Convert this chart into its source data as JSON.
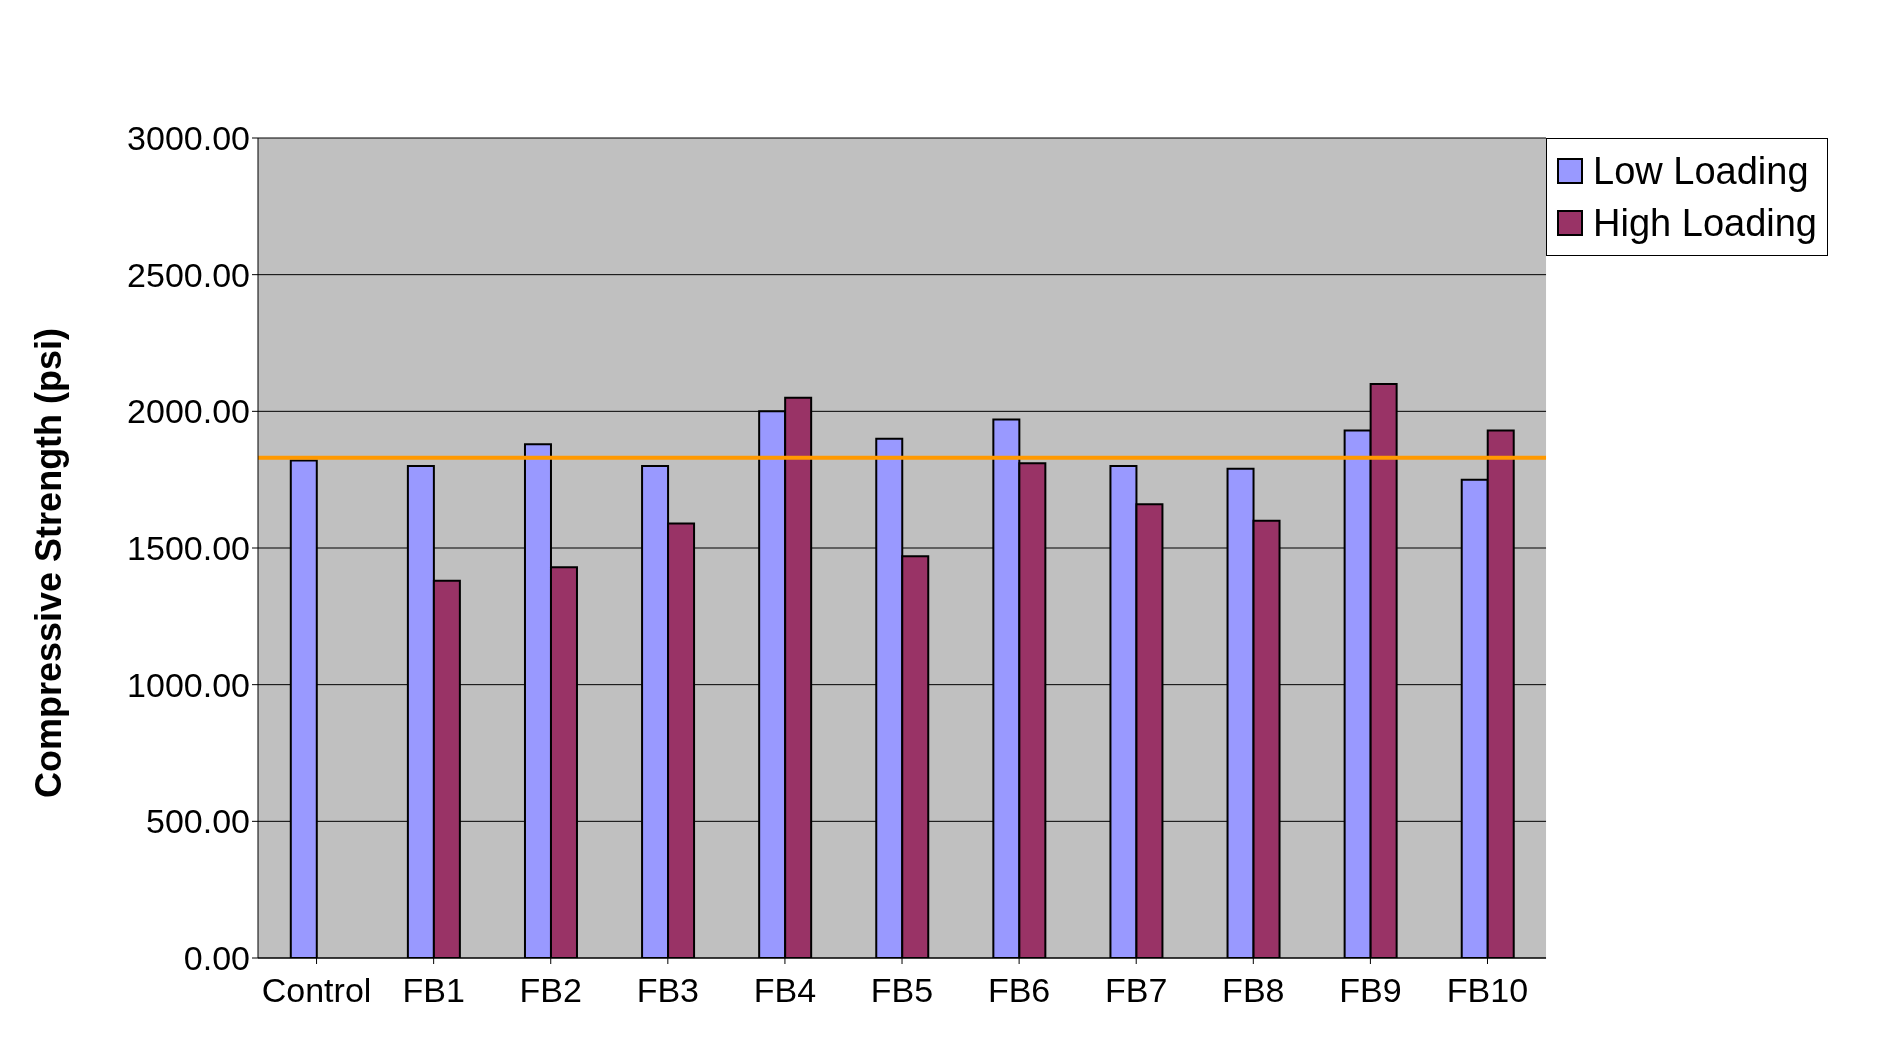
{
  "chart_data": {
    "type": "bar",
    "ylabel": "Compressive Strength (psi)",
    "categories": [
      "Control",
      "FB1",
      "FB2",
      "FB3",
      "FB4",
      "FB5",
      "FB6",
      "FB7",
      "FB8",
      "FB9",
      "FB10"
    ],
    "series": [
      {
        "name": "Low Loading",
        "color": "#9999ff",
        "values": [
          1820,
          1800,
          1880,
          1800,
          2000,
          1900,
          1970,
          1800,
          1790,
          1930,
          1750
        ]
      },
      {
        "name": "High Loading",
        "color": "#993366",
        "values": [
          null,
          1380,
          1430,
          1590,
          2050,
          1470,
          1810,
          1660,
          1600,
          2100,
          1930
        ]
      }
    ],
    "ylim": [
      0,
      3000
    ],
    "yticks": [
      {
        "value": 0,
        "label": "0.00"
      },
      {
        "value": 500,
        "label": "500.00"
      },
      {
        "value": 1000,
        "label": "1000.00"
      },
      {
        "value": 1500,
        "label": "1500.00"
      },
      {
        "value": 2000,
        "label": "2000.00"
      },
      {
        "value": 2500,
        "label": "2500.00"
      },
      {
        "value": 3000,
        "label": "3000.00"
      }
    ],
    "ref_lines": [
      {
        "axis": "y",
        "value": 1830,
        "color": "#ff9900"
      }
    ],
    "grid": "y",
    "legend": "top right"
  }
}
